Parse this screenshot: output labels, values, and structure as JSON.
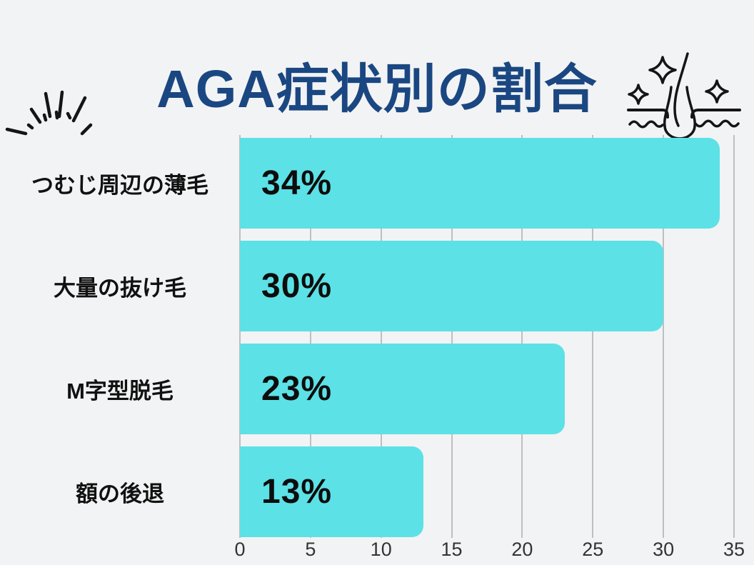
{
  "page": {
    "background_color": "#f2f3f4"
  },
  "header": {
    "burst_icon": "burst-rays",
    "follicle_icon": "hair-follicle-sparkles"
  },
  "chart_data": {
    "type": "bar",
    "orientation": "horizontal",
    "title": "AGA症状別の割合",
    "title_color": "#1a4781",
    "categories": [
      "つむじ周辺の薄毛",
      "大量の抜け毛",
      "M字型脱毛",
      "額の後退"
    ],
    "values": [
      34,
      30,
      23,
      13
    ],
    "value_labels": [
      "34%",
      "30%",
      "23%",
      "13%"
    ],
    "x_ticks": [
      0,
      5,
      10,
      15,
      20,
      25,
      30,
      35
    ],
    "xlim": [
      0,
      35
    ],
    "bar_color": "#5ce1e6",
    "grid": true,
    "gridline_color": "#bfbfc1",
    "legend": "none"
  }
}
